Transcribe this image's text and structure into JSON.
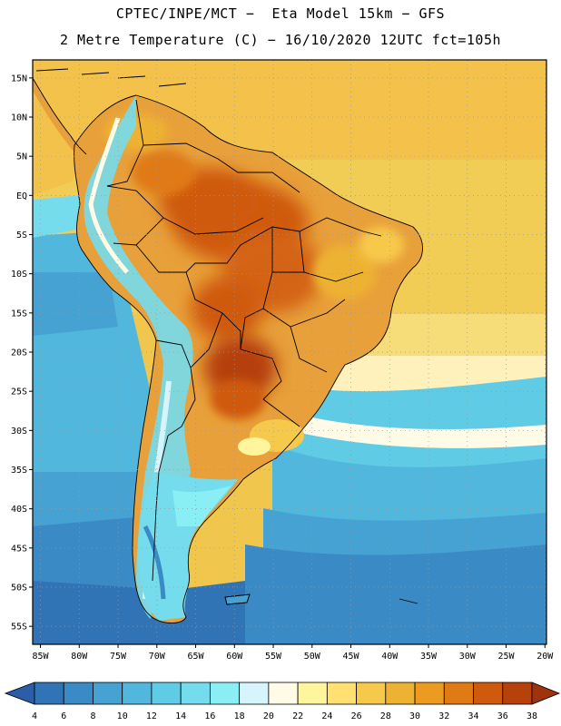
{
  "header": {
    "title_line1": "CPTEC/INPE/MCT −  Eta Model 15km − GFS",
    "title_line2": "2 Metre Temperature (C) − 16/10/2020 12UTC fct=105h"
  },
  "map": {
    "lat_labels": [
      "15N",
      "10N",
      "5N",
      "EQ",
      "5S",
      "10S",
      "15S",
      "20S",
      "25S",
      "30S",
      "35S",
      "40S",
      "45S",
      "50S",
      "55S"
    ],
    "lon_labels": [
      "85W",
      "80W",
      "75W",
      "70W",
      "65W",
      "60W",
      "55W",
      "50W",
      "45W",
      "40W",
      "35W",
      "30W",
      "25W",
      "20W"
    ],
    "lat_range": [
      15,
      -55
    ],
    "lon_range": [
      -85,
      -20
    ],
    "grid": true
  },
  "colorbar": {
    "ticks": [
      "4",
      "6",
      "8",
      "10",
      "12",
      "14",
      "16",
      "18",
      "20",
      "22",
      "24",
      "26",
      "28",
      "30",
      "32",
      "34",
      "36",
      "38"
    ],
    "colors": [
      "#2b5ea7",
      "#3174b5",
      "#3a8ac5",
      "#46a2d2",
      "#52b7dc",
      "#5fcbe4",
      "#74dcec",
      "#8aeef5",
      "#d6f4fb",
      "#fffbe6",
      "#fff59d",
      "#ffe071",
      "#f7c94b",
      "#eeb233",
      "#ec9a20",
      "#e07a14",
      "#cf5a0d",
      "#b6410b",
      "#9f330d"
    ]
  }
}
